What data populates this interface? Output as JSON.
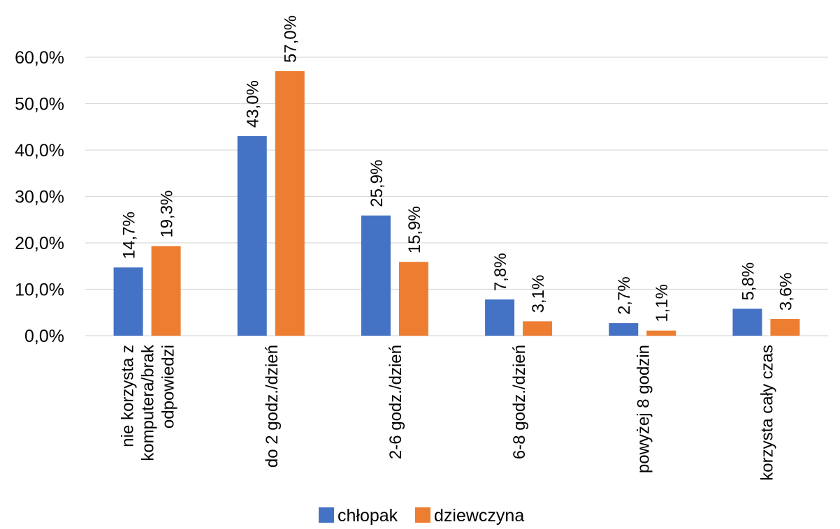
{
  "chart_data": {
    "type": "bar",
    "title": "",
    "xlabel": "",
    "ylabel": "",
    "ylim": [
      0,
      60
    ],
    "y_ticks": [
      "0,0%",
      "10,0%",
      "20,0%",
      "30,0%",
      "40,0%",
      "50,0%",
      "60,0%"
    ],
    "y_tick_values": [
      0,
      10,
      20,
      30,
      40,
      50,
      60
    ],
    "grid": true,
    "legend_position": "bottom",
    "categories": [
      [
        "nie korzysta z",
        "komputera/brak",
        "odpowiedzi"
      ],
      [
        "do 2 godz./dzień"
      ],
      [
        "2-6 godz./dzień"
      ],
      [
        "6-8 godz./dzień"
      ],
      [
        "powyżej 8 godzin"
      ],
      [
        "korzysta cały czas"
      ]
    ],
    "series": [
      {
        "name": "chłopak",
        "color": "#4472c4",
        "values": [
          14.7,
          43.0,
          25.9,
          7.8,
          2.7,
          5.8
        ],
        "labels": [
          "14,7%",
          "43,0%",
          "25,9%",
          "7,8%",
          "2,7%",
          "5,8%"
        ]
      },
      {
        "name": "dziewczyna",
        "color": "#ed7d31",
        "values": [
          19.3,
          57.0,
          15.9,
          3.1,
          1.1,
          3.6
        ],
        "labels": [
          "19,3%",
          "57,0%",
          "15,9%",
          "3,1%",
          "1,1%",
          "3,6%"
        ]
      }
    ]
  }
}
